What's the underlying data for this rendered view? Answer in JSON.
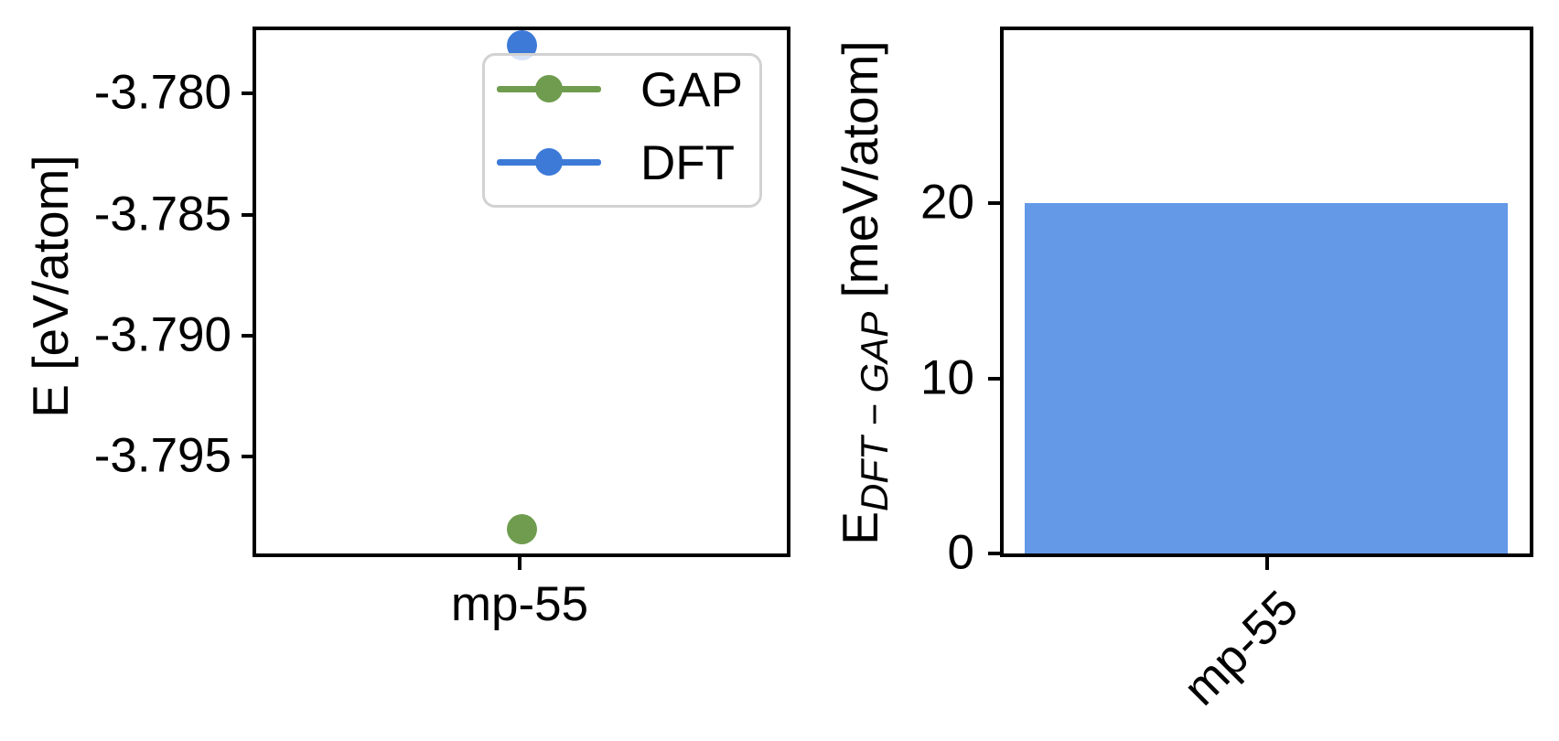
{
  "background": "#ffffff",
  "chart_data": [
    {
      "type": "scatter",
      "title": "",
      "categories": [
        "mp-55"
      ],
      "series": [
        {
          "name": "GAP",
          "color": "#6f9c4e",
          "values": [
            -3.798
          ]
        },
        {
          "name": "DFT",
          "color": "#3d7ad7",
          "values": [
            -3.778
          ]
        }
      ],
      "xlabel": "",
      "ylabel": "E [eV/atom]",
      "ylim": [
        -3.799,
        -3.7773
      ],
      "yticks": {
        "values": [
          -3.78,
          -3.785,
          -3.79,
          -3.795
        ],
        "labels": [
          "-3.780",
          "-3.785",
          "-3.790",
          "-3.795"
        ]
      },
      "grid": false,
      "legend_position": "upper right"
    },
    {
      "type": "bar",
      "title": "",
      "categories": [
        "mp-55"
      ],
      "values": [
        20
      ],
      "bar_color": "#6499e8",
      "xlabel": "",
      "ylabel": "E_DFT-GAP [meV/atom]",
      "ylabel_parts": {
        "main": "E",
        "sub": "DFT − GAP",
        "unit": " [meV/atom]"
      },
      "ylim": [
        0,
        30
      ],
      "yticks": {
        "values": [
          0,
          10,
          20
        ],
        "labels": [
          "0",
          "10",
          "20"
        ]
      },
      "grid": false,
      "legend_position": "none"
    }
  ]
}
